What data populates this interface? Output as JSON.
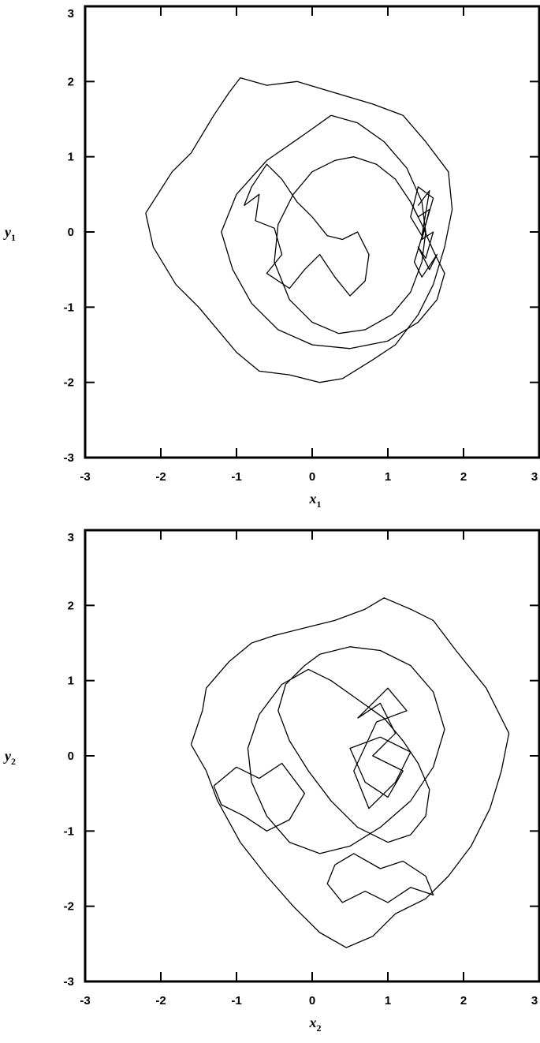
{
  "chart_data": [
    {
      "type": "line",
      "title": "",
      "xlabel": "x",
      "xlabel_sub": "1",
      "ylabel": "y",
      "ylabel_sub": "1",
      "xlim": [
        -3,
        3
      ],
      "ylim": [
        -3,
        3
      ],
      "xticks": [
        "-3",
        "-2",
        "-1",
        "0",
        "1",
        "2",
        "3"
      ],
      "yticks": [
        "-3",
        "-2",
        "-1",
        "0",
        "1",
        "2",
        "3"
      ],
      "grid": false,
      "legend": "none",
      "line_color": "#000000",
      "series": [
        {
          "x": [
            -2.2,
            -1.85,
            -1.6,
            -1.3,
            -1.1,
            -0.95,
            -0.6,
            -0.2,
            0.3,
            0.8,
            1.2,
            1.5,
            1.8,
            1.85,
            1.75,
            1.6,
            1.4,
            1.1,
            0.8,
            0.4,
            0.1,
            -0.3,
            -0.7,
            -1.0,
            -1.25,
            -1.5,
            -1.8,
            -2.1,
            -2.2
          ],
          "y": [
            0.25,
            0.8,
            1.05,
            1.55,
            1.85,
            2.05,
            1.95,
            2.0,
            1.85,
            1.7,
            1.55,
            1.2,
            0.8,
            0.3,
            -0.2,
            -0.7,
            -1.1,
            -1.5,
            -1.7,
            -1.95,
            -2.0,
            -1.9,
            -1.85,
            -1.6,
            -1.3,
            -1.0,
            -0.7,
            -0.2,
            0.25
          ]
        },
        {
          "x": [
            0.25,
            0.6,
            0.95,
            1.25,
            1.45,
            1.5,
            1.45,
            1.3,
            1.05,
            0.7,
            0.35,
            0.0,
            -0.3,
            -0.5,
            -0.45,
            -0.25,
            0.0,
            0.3,
            0.55,
            0.85,
            1.1,
            1.3,
            1.45,
            1.6,
            1.75,
            1.65,
            1.4,
            1.0,
            0.5,
            0.0,
            -0.45,
            -0.8,
            -1.05,
            -1.2,
            -1.0,
            -0.6,
            -0.1,
            0.25
          ],
          "y": [
            1.55,
            1.45,
            1.2,
            0.85,
            0.4,
            0.0,
            -0.4,
            -0.8,
            -1.1,
            -1.3,
            -1.35,
            -1.2,
            -0.9,
            -0.4,
            0.1,
            0.5,
            0.8,
            0.95,
            1.0,
            0.9,
            0.7,
            0.4,
            0.1,
            -0.25,
            -0.55,
            -0.9,
            -1.2,
            -1.45,
            -1.55,
            -1.5,
            -1.3,
            -0.95,
            -0.5,
            0.0,
            0.5,
            0.95,
            1.3,
            1.55
          ]
        },
        {
          "x": [
            1.3,
            1.4,
            1.55,
            1.45,
            1.6,
            1.5,
            1.4,
            1.55,
            1.65,
            1.45,
            1.35,
            1.5,
            1.6,
            1.4,
            1.3,
            1.45,
            1.55,
            1.4
          ],
          "y": [
            0.4,
            0.2,
            0.3,
            -0.1,
            0.0,
            -0.35,
            -0.2,
            -0.5,
            -0.3,
            -0.6,
            -0.4,
            0.1,
            0.45,
            0.6,
            0.2,
            -0.05,
            0.55,
            0.35
          ]
        },
        {
          "x": [
            -0.9,
            -0.7,
            -0.75,
            -0.5,
            -0.4,
            -0.6,
            -0.3,
            -0.1,
            0.1,
            0.3,
            0.5,
            0.7,
            0.75,
            0.6,
            0.4,
            0.2,
            0.0,
            -0.2,
            -0.4,
            -0.6,
            -0.8,
            -0.9
          ],
          "y": [
            0.35,
            0.5,
            0.15,
            0.05,
            -0.3,
            -0.55,
            -0.75,
            -0.5,
            -0.3,
            -0.6,
            -0.85,
            -0.65,
            -0.3,
            0.0,
            -0.1,
            -0.05,
            0.2,
            0.4,
            0.7,
            0.9,
            0.6,
            0.35
          ]
        }
      ]
    },
    {
      "type": "line",
      "title": "",
      "xlabel": "x",
      "xlabel_sub": "2",
      "ylabel": "y",
      "ylabel_sub": "2",
      "xlim": [
        -3,
        3
      ],
      "ylim": [
        -3,
        3
      ],
      "xticks": [
        "-3",
        "-2",
        "-1",
        "0",
        "1",
        "2",
        "3"
      ],
      "yticks": [
        "-3",
        "-2",
        "-1",
        "0",
        "1",
        "2",
        "3"
      ],
      "grid": false,
      "legend": "none",
      "line_color": "#000000",
      "series": [
        {
          "x": [
            -1.6,
            -1.45,
            -1.4,
            -1.1,
            -0.8,
            -0.5,
            -0.1,
            0.3,
            0.7,
            0.95,
            1.3,
            1.6,
            1.9,
            2.3,
            2.6,
            2.5,
            2.35,
            2.1,
            1.8,
            1.5,
            1.1,
            0.8,
            0.45,
            0.1,
            -0.25,
            -0.6,
            -0.95,
            -1.25,
            -1.4,
            -1.6
          ],
          "y": [
            0.15,
            0.6,
            0.9,
            1.25,
            1.5,
            1.6,
            1.7,
            1.8,
            1.95,
            2.1,
            1.95,
            1.8,
            1.4,
            0.9,
            0.3,
            -0.2,
            -0.7,
            -1.2,
            -1.6,
            -1.9,
            -2.1,
            -2.4,
            -2.55,
            -2.35,
            -2.0,
            -1.6,
            -1.15,
            -0.6,
            -0.2,
            0.15
          ]
        },
        {
          "x": [
            0.1,
            0.5,
            0.9,
            1.3,
            1.6,
            1.75,
            1.6,
            1.3,
            0.9,
            0.5,
            0.1,
            -0.3,
            -0.6,
            -0.8,
            -0.85,
            -0.7,
            -0.4,
            -0.05,
            0.25,
            0.6,
            0.95,
            1.2,
            1.4,
            1.55,
            1.5,
            1.3,
            1.0,
            0.6,
            0.25,
            -0.05,
            -0.3,
            -0.45,
            -0.35,
            -0.1,
            0.1
          ],
          "y": [
            1.35,
            1.45,
            1.4,
            1.2,
            0.85,
            0.35,
            -0.15,
            -0.6,
            -0.95,
            -1.2,
            -1.3,
            -1.15,
            -0.8,
            -0.35,
            0.1,
            0.55,
            0.95,
            1.15,
            1.0,
            0.75,
            0.5,
            0.2,
            -0.1,
            -0.45,
            -0.8,
            -1.05,
            -1.15,
            -0.95,
            -0.6,
            -0.2,
            0.2,
            0.6,
            0.95,
            1.2,
            1.35
          ]
        },
        {
          "x": [
            0.6,
            0.9,
            1.1,
            0.8,
            1.2,
            1.0,
            0.7,
            0.5,
            0.9,
            1.3,
            1.1,
            0.75,
            0.55,
            0.85,
            1.25,
            1.0,
            0.6
          ],
          "y": [
            0.5,
            0.7,
            0.3,
            0.0,
            -0.2,
            -0.55,
            -0.35,
            0.1,
            0.25,
            0.05,
            -0.35,
            -0.7,
            -0.2,
            0.45,
            0.6,
            0.9,
            0.5
          ]
        },
        {
          "x": [
            -1.3,
            -1.0,
            -0.7,
            -0.4,
            -0.1,
            -0.3,
            -0.6,
            -0.9,
            -1.2,
            -1.3
          ],
          "y": [
            -0.4,
            -0.15,
            -0.3,
            -0.1,
            -0.5,
            -0.85,
            -1.0,
            -0.8,
            -0.65,
            -0.4
          ]
        },
        {
          "x": [
            0.3,
            0.55,
            0.9,
            1.2,
            1.5,
            1.6,
            1.3,
            1.0,
            0.7,
            0.4,
            0.2,
            0.3
          ],
          "y": [
            -1.45,
            -1.3,
            -1.5,
            -1.4,
            -1.6,
            -1.85,
            -1.75,
            -1.95,
            -1.8,
            -1.95,
            -1.7,
            -1.45
          ]
        }
      ]
    }
  ]
}
